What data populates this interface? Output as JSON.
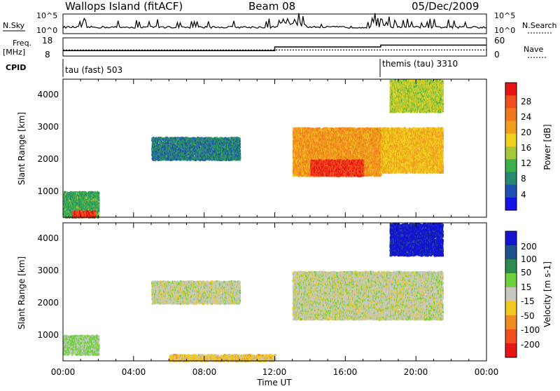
{
  "header": {
    "station": "Wallops Island (fitACF)",
    "beam": "Beam 08",
    "date": "05/Dec/2009"
  },
  "top_panels": {
    "nsky_label": "N.Sky",
    "nsky_ticks_left": [
      "10^5",
      "10^0"
    ],
    "nsearch_label": "N.Search",
    "nsearch_ticks_right": [
      "10^5",
      "10^0"
    ],
    "freq_label_1": "Freq.",
    "freq_label_2": "[MHz]",
    "freq_ticks_left": [
      "18",
      "8"
    ],
    "nave_label": "Nave",
    "nave_ticks_right": [
      "60",
      "0"
    ],
    "cpid_label": "CPID",
    "cpid_segments": [
      {
        "name": "tau (fast) 503",
        "start": "00:00"
      },
      {
        "name": "themis (tau) 3310",
        "start": "18:00"
      }
    ]
  },
  "power_panel": {
    "ylabel": "Slant Range [km]",
    "yticks": [
      "1000",
      "2000",
      "3000",
      "4000"
    ],
    "colorbar_label": "Power [dB]",
    "colorbar_ticks": [
      "4",
      "8",
      "12",
      "16",
      "20",
      "24",
      "28"
    ],
    "colors": [
      "#1414e6",
      "#1e50b4",
      "#2a8870",
      "#3cb04a",
      "#a6c83a",
      "#f0d21e",
      "#f0a01e",
      "#f0781e",
      "#f0501e",
      "#e61414"
    ]
  },
  "velocity_panel": {
    "ylabel": "Slant Range [km]",
    "yticks": [
      "1000",
      "2000",
      "3000",
      "4000"
    ],
    "colorbar_label": "Velocity [m s-1]",
    "colorbar_ticks": [
      "200",
      "100",
      "50",
      "15",
      "-15",
      "-50",
      "-100",
      "-200"
    ],
    "colors": [
      "#1414d2",
      "#1e508c",
      "#2a8c50",
      "#6ed23c",
      "#c8c8c0",
      "#f0c81e",
      "#f08c1e",
      "#f0501e",
      "#e61414"
    ]
  },
  "xaxis": {
    "label": "Time UT",
    "ticks": [
      "00:00",
      "04:00",
      "08:00",
      "12:00",
      "16:00",
      "20:00",
      "00:00"
    ]
  },
  "chart_data": [
    {
      "type": "line",
      "title": "Wallops Island (fitACF)",
      "series": [
        {
          "name": "N.Sky",
          "note": "log scale 10^0–10^5, near 10^1 with spikes to ~10^4 around 12:00–14:00 and 18:00"
        }
      ],
      "xlabel": "Time UT",
      "xlim": [
        "00:00",
        "24:00"
      ]
    },
    {
      "type": "line",
      "series": [
        {
          "name": "Freq. [MHz]",
          "x": [
            "00:00",
            "12:00",
            "18:00",
            "24:00"
          ],
          "values": [
            11,
            13,
            14,
            14
          ]
        },
        {
          "name": "Nave",
          "x": [
            "00:00",
            "18:00",
            "24:00"
          ],
          "values": [
            20,
            20,
            23
          ]
        }
      ],
      "ylim_left": [
        8,
        18
      ],
      "ylim_right": [
        0,
        60
      ]
    },
    {
      "type": "heatmap",
      "variable": "Power [dB]",
      "xlabel": "Time UT",
      "ylabel": "Slant Range [km]",
      "ylim": [
        180,
        4500
      ],
      "clim": [
        0,
        30
      ],
      "regions": [
        {
          "t": [
            0.0,
            2.0
          ],
          "range": [
            200,
            1000
          ],
          "power": 10
        },
        {
          "t": [
            0.5,
            1.8
          ],
          "range": [
            200,
            400
          ],
          "power": 27
        },
        {
          "t": [
            5.0,
            10.0
          ],
          "range": [
            2000,
            2700
          ],
          "power": 7
        },
        {
          "t": [
            13.0,
            18.0
          ],
          "range": [
            1500,
            3000
          ],
          "power": 20
        },
        {
          "t": [
            14.0,
            17.0
          ],
          "range": [
            1500,
            2000
          ],
          "power": 27
        },
        {
          "t": [
            18.0,
            21.5
          ],
          "range": [
            1600,
            3000
          ],
          "power": 18
        },
        {
          "t": [
            18.5,
            21.5
          ],
          "range": [
            3500,
            4500
          ],
          "power": 14
        }
      ]
    },
    {
      "type": "heatmap",
      "variable": "Velocity [m s-1]",
      "xlabel": "Time UT",
      "ylabel": "Slant Range [km]",
      "ylim": [
        180,
        4500
      ],
      "clim": [
        -200,
        200
      ],
      "regions": [
        {
          "t": [
            0.0,
            2.0
          ],
          "range": [
            400,
            1000
          ],
          "velocity": 30
        },
        {
          "t": [
            6.0,
            12.0
          ],
          "range": [
            200,
            400
          ],
          "velocity": -40
        },
        {
          "t": [
            5.0,
            10.0
          ],
          "range": [
            2000,
            2700
          ],
          "velocity": 0
        },
        {
          "t": [
            13.0,
            21.5
          ],
          "range": [
            1500,
            3000
          ],
          "velocity": 0
        },
        {
          "t": [
            18.5,
            21.5
          ],
          "range": [
            3500,
            4500
          ],
          "velocity": 180
        }
      ]
    }
  ]
}
